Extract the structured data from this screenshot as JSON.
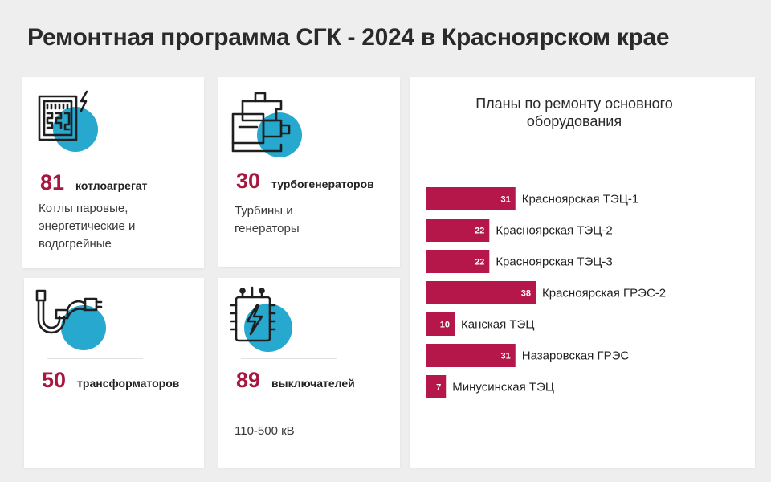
{
  "page": {
    "title": "Ремонтная программа СГК - 2024 в Красноярском крае"
  },
  "colors": {
    "accent": "#a8173f",
    "icon_circle": "#27a8cf",
    "background": "#eeeeee"
  },
  "cards": {
    "boilers": {
      "number": "81",
      "unit": "котлоагрегат",
      "desc": [
        "Котлы паровые,",
        "энергетические и",
        "водогрейные"
      ],
      "icon": "boiler-icon"
    },
    "turbines": {
      "number": "30",
      "unit": "турбогенераторов",
      "desc": [
        "Турбины и",
        "генераторы"
      ],
      "icon": "turbine-icon"
    },
    "transformers": {
      "number": "50",
      "unit": "трансформаторов",
      "icon": "transformer-pipe-icon"
    },
    "breakers": {
      "number": "89",
      "unit": "выключателей",
      "desc": [
        "110-500 кВ"
      ],
      "icon": "breaker-icon"
    }
  },
  "chart_data": {
    "type": "bar",
    "orientation": "horizontal",
    "title": "Планы по ремонту основного оборудования",
    "categories": [
      "Красноярская ТЭЦ-1",
      "Красноярская ТЭЦ-2",
      "Красноярская ТЭЦ-3",
      "Красноярская ГРЭС-2",
      "Канская ТЭЦ",
      "Назаровская ГРЭС",
      "Минусинская ТЭЦ"
    ],
    "values": [
      31,
      22,
      22,
      38,
      10,
      31,
      7
    ],
    "xlim": [
      0,
      38
    ],
    "bar_color": "#b5174a",
    "grid": false
  }
}
